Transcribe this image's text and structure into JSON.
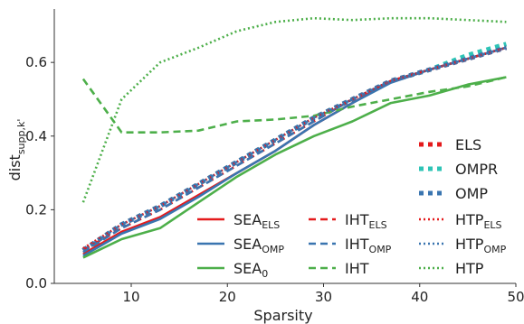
{
  "chart_data": {
    "type": "line",
    "title": "",
    "xlabel": "Sparsity",
    "ylabel": {
      "main": "dist",
      "sub": "supp,k'"
    },
    "xlim": [
      2,
      50
    ],
    "ylim": [
      0,
      0.745
    ],
    "xticks": [
      10,
      20,
      30,
      40,
      50
    ],
    "yticks": [
      0.0,
      0.2,
      0.4,
      0.6
    ],
    "ytick_labels": [
      "0.0",
      "0.2",
      "0.4",
      "0.6"
    ],
    "grid": false,
    "legend_placement": "lower-right",
    "x": [
      5,
      9,
      13,
      17,
      21,
      25,
      29,
      33,
      37,
      41,
      45,
      49
    ],
    "series": [
      {
        "name": "ELS",
        "main": "ELS",
        "sub": "",
        "color": "#e41a1c",
        "style": "bigdot",
        "values": [
          0.09,
          0.16,
          0.21,
          0.27,
          0.33,
          0.39,
          0.45,
          0.5,
          0.55,
          0.58,
          0.61,
          0.64
        ]
      },
      {
        "name": "OMPR",
        "main": "OMPR",
        "sub": "",
        "color": "#2ec4b6",
        "style": "bigdot",
        "values": [
          0.09,
          0.16,
          0.21,
          0.27,
          0.33,
          0.39,
          0.45,
          0.5,
          0.55,
          0.58,
          0.62,
          0.65
        ]
      },
      {
        "name": "OMP",
        "main": "OMP",
        "sub": "",
        "color": "#3a75b0",
        "style": "bigdot",
        "values": [
          0.09,
          0.16,
          0.21,
          0.27,
          0.33,
          0.39,
          0.45,
          0.5,
          0.55,
          0.58,
          0.61,
          0.64
        ]
      },
      {
        "name": "SEA_ELS",
        "main": "SEA",
        "sub": "ELS",
        "color": "#e41a1c",
        "style": "solid",
        "values": [
          0.08,
          0.14,
          0.18,
          0.24,
          0.3,
          0.36,
          0.43,
          0.49,
          0.55,
          0.58,
          0.61,
          0.64
        ]
      },
      {
        "name": "SEA_OMP",
        "main": "SEA",
        "sub": "OMP",
        "color": "#3a75b0",
        "style": "solid",
        "values": [
          0.075,
          0.135,
          0.175,
          0.235,
          0.3,
          0.36,
          0.43,
          0.49,
          0.545,
          0.58,
          0.61,
          0.64
        ]
      },
      {
        "name": "SEA_0",
        "main": "SEA",
        "sub": "0",
        "color": "#4daf4a",
        "style": "solid",
        "values": [
          0.07,
          0.12,
          0.15,
          0.22,
          0.29,
          0.35,
          0.4,
          0.44,
          0.49,
          0.51,
          0.54,
          0.56
        ]
      },
      {
        "name": "IHT_ELS",
        "main": "IHT",
        "sub": "ELS",
        "color": "#e41a1c",
        "style": "dashed",
        "values": [
          0.09,
          0.15,
          0.2,
          0.26,
          0.32,
          0.38,
          0.44,
          0.5,
          0.55,
          0.58,
          0.61,
          0.64
        ]
      },
      {
        "name": "IHT_OMP",
        "main": "IHT",
        "sub": "OMP",
        "color": "#3a75b0",
        "style": "dashed",
        "values": [
          0.085,
          0.15,
          0.2,
          0.26,
          0.32,
          0.38,
          0.44,
          0.5,
          0.55,
          0.58,
          0.61,
          0.64
        ]
      },
      {
        "name": "IHT",
        "main": "IHT",
        "sub": "",
        "color": "#4daf4a",
        "style": "dashed",
        "values": [
          0.555,
          0.41,
          0.41,
          0.415,
          0.44,
          0.445,
          0.455,
          0.48,
          0.5,
          0.52,
          0.535,
          0.56
        ]
      },
      {
        "name": "HTP_ELS",
        "main": "HTP",
        "sub": "ELS",
        "color": "#e41a1c",
        "style": "dotted",
        "values": [
          0.095,
          0.16,
          0.21,
          0.27,
          0.33,
          0.39,
          0.45,
          0.5,
          0.55,
          0.58,
          0.61,
          0.64
        ]
      },
      {
        "name": "HTP_OMP",
        "main": "HTP",
        "sub": "OMP",
        "color": "#3a75b0",
        "style": "dotted",
        "values": [
          0.09,
          0.16,
          0.21,
          0.27,
          0.33,
          0.39,
          0.45,
          0.5,
          0.55,
          0.58,
          0.61,
          0.64
        ]
      },
      {
        "name": "HTP",
        "main": "HTP",
        "sub": "",
        "color": "#4daf4a",
        "style": "dotted",
        "values": [
          0.22,
          0.5,
          0.6,
          0.64,
          0.685,
          0.71,
          0.72,
          0.715,
          0.72,
          0.72,
          0.715,
          0.71
        ]
      }
    ]
  }
}
